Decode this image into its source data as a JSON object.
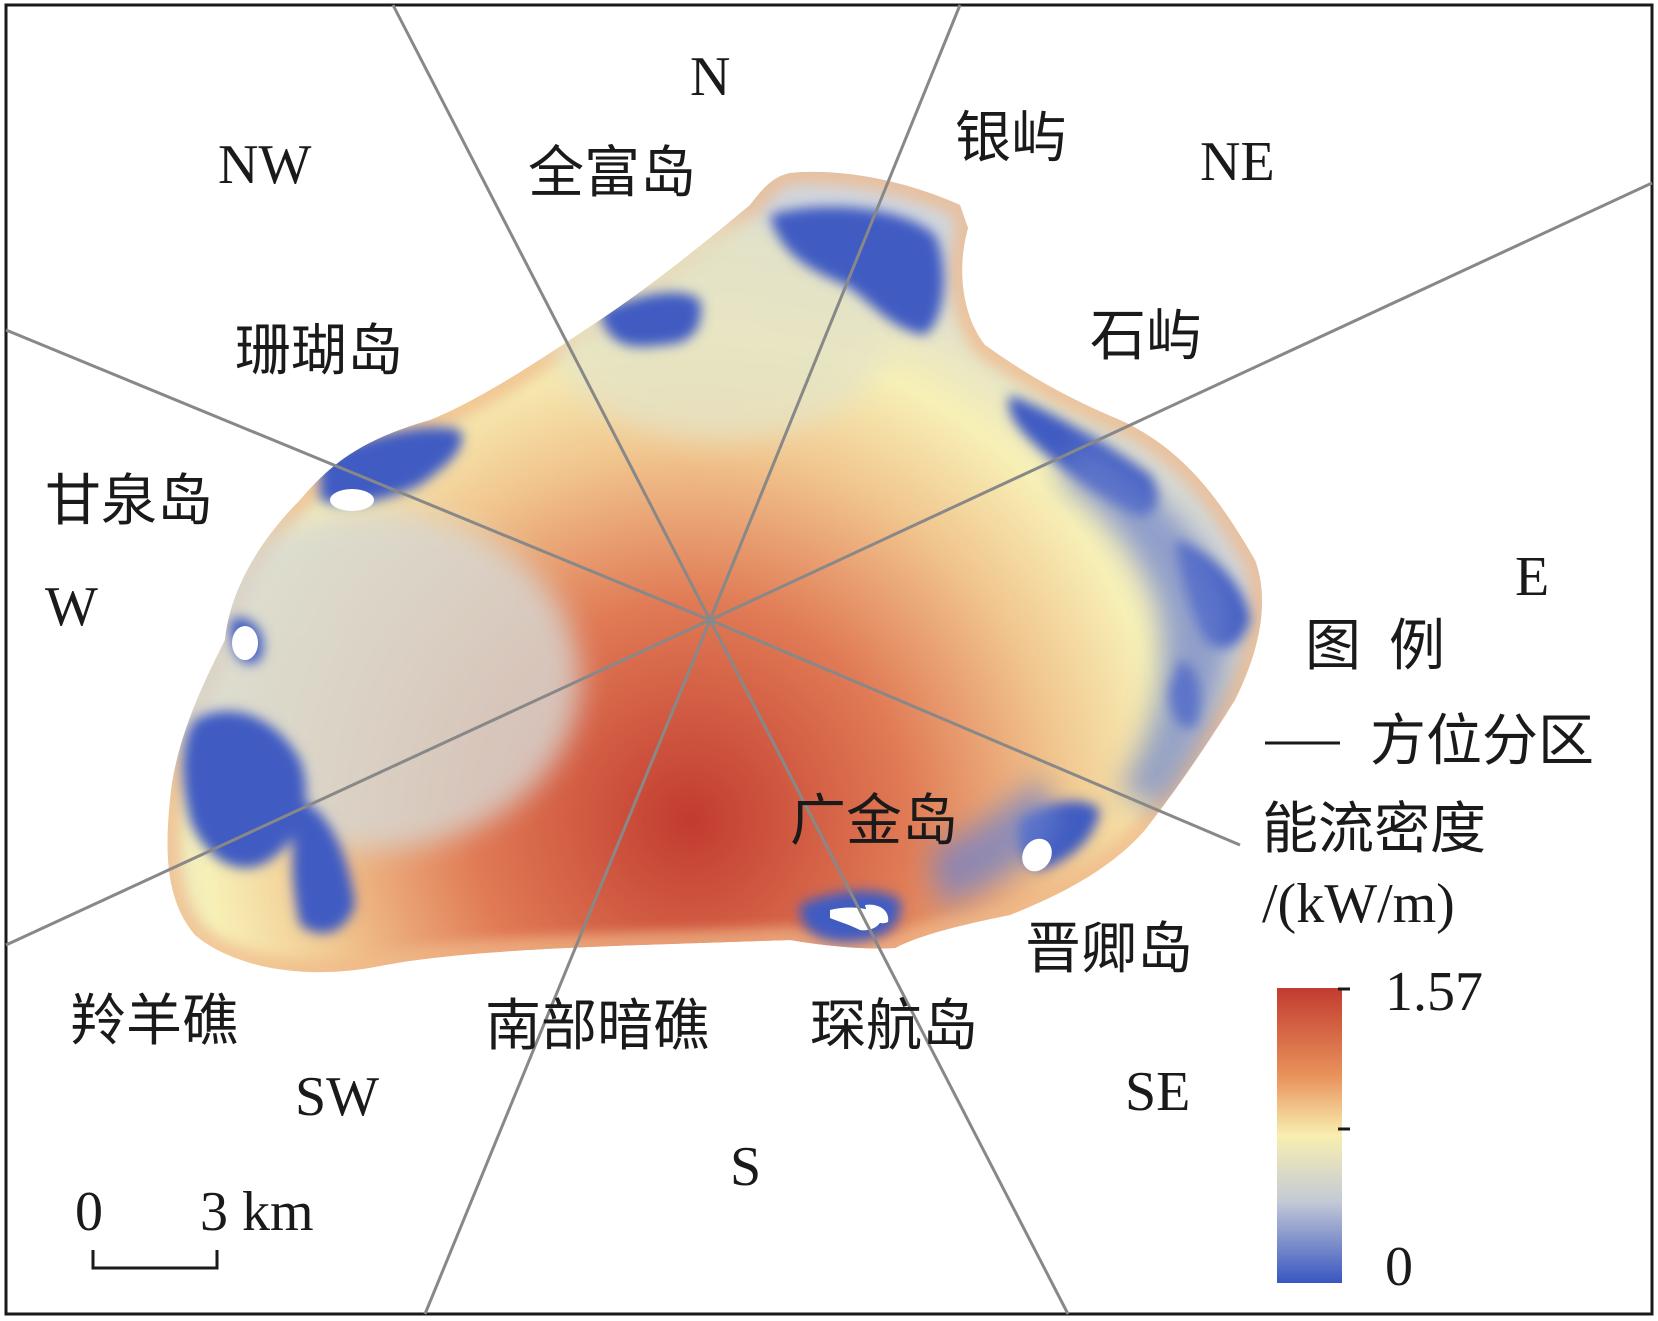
{
  "directions": {
    "N": "N",
    "NE": "NE",
    "E": "E",
    "SE": "SE",
    "S": "S",
    "SW": "SW",
    "W": "W",
    "NW": "NW"
  },
  "places": {
    "quanfu": "全富岛",
    "yinyu": "银屿",
    "shanhu": "珊瑚岛",
    "shiyu": "石屿",
    "ganquan": "甘泉岛",
    "guangjin": "广金岛",
    "jinqing": "晋卿岛",
    "lingyang": "羚羊礁",
    "nanbu": "南部暗礁",
    "chenhang": "琛航岛"
  },
  "legend": {
    "title": "图  例",
    "sector_item": "方位分区",
    "density_title": "能流密度",
    "density_unit": "/(kW/m)",
    "max_value": "1.57",
    "min_value": "0",
    "colors": [
      "#c23b2f",
      "#e9935c",
      "#f8eeb0",
      "#c5cbd6",
      "#3856c0"
    ]
  },
  "scale_bar": {
    "zero": "0",
    "distance": "3 km"
  }
}
